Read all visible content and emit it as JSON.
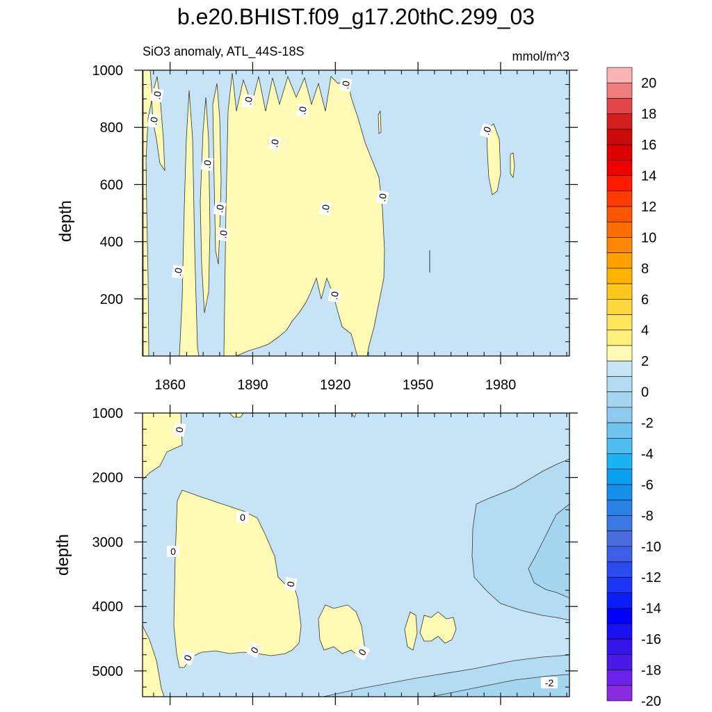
{
  "title": "b.e20.BHIST.f09_g17.20thC.299_03",
  "subtitle_left": "SiO3 anomaly, ATL_44S-18S",
  "subtitle_right": "mmol/m^3",
  "colors": {
    "positive_fill": "#fffab4",
    "negative_fill": "#c6e4f5",
    "negative_fill_2": "#a5d6f0",
    "contour_line": "#333333"
  },
  "chart_data": [
    {
      "type": "contour",
      "panel": "upper",
      "ylabel": "depth",
      "ylim": [
        1000,
        0
      ],
      "yticks": [
        "200",
        "400",
        "600",
        "800",
        "1000"
      ],
      "xlim": [
        1850,
        2005
      ],
      "xticks": [
        "1860",
        "1890",
        "1920",
        "1950",
        "1980"
      ],
      "contour_labels": [
        ".0",
        ".0",
        ".0",
        ".0",
        ".0",
        ".0",
        ".0",
        ".0",
        ".0",
        ".0",
        ".0",
        ".0",
        ".0",
        ".0"
      ],
      "positive_regions_years": [
        [
          1853,
          1858
        ],
        [
          1866,
          1875
        ],
        [
          1877,
          1880
        ],
        [
          1882,
          1938
        ],
        [
          1973,
          1978
        ]
      ]
    },
    {
      "type": "contour",
      "panel": "lower",
      "ylabel": "depth",
      "ylim": [
        1000,
        5400
      ],
      "yticks": [
        "1000",
        "2000",
        "3000",
        "4000",
        "5000"
      ],
      "xlim": [
        1850,
        2005
      ],
      "xticks": [
        "1860",
        "1890",
        "1920",
        "1950",
        "1980"
      ],
      "contour_labels": [
        "0",
        "0",
        "0",
        "0",
        "0",
        "0",
        "0",
        "0",
        "-2"
      ],
      "positive_regions_years": [
        [
          1850,
          1862
        ],
        [
          1862,
          1907
        ],
        [
          1913,
          1930
        ]
      ]
    }
  ],
  "colorbar": {
    "labels": [
      "20",
      "18",
      "16",
      "14",
      "12",
      "10",
      "8",
      "6",
      "4",
      "2",
      "0",
      "-2",
      "-4",
      "-6",
      "-8",
      "-10",
      "-12",
      "-14",
      "-16",
      "-18",
      "-20"
    ],
    "colors": [
      "#fbb4b4",
      "#ef7d7d",
      "#e04646",
      "#d41e1e",
      "#cc0a0a",
      "#dd0000",
      "#ee0000",
      "#ff1a00",
      "#ff3c00",
      "#ff5500",
      "#ff6e00",
      "#ff8700",
      "#ffa000",
      "#ffb300",
      "#ffc71a",
      "#ffd73c",
      "#ffe65a",
      "#fff07d",
      "#fffab4",
      "#c6e4f5",
      "#b3dcf2",
      "#a5d6f0",
      "#8ecaee",
      "#6fc4ef",
      "#4fbff2",
      "#1ab4f5",
      "#0a9ff0",
      "#1490ea",
      "#2882e6",
      "#3a78e2",
      "#4a6ee0",
      "#3c5fe6",
      "#2a4cee",
      "#1a36f4",
      "#0a1ef8",
      "#0000ff",
      "#1a10f2",
      "#3314ea",
      "#4c1ae6",
      "#6a22e8",
      "#8a2be2"
    ]
  }
}
